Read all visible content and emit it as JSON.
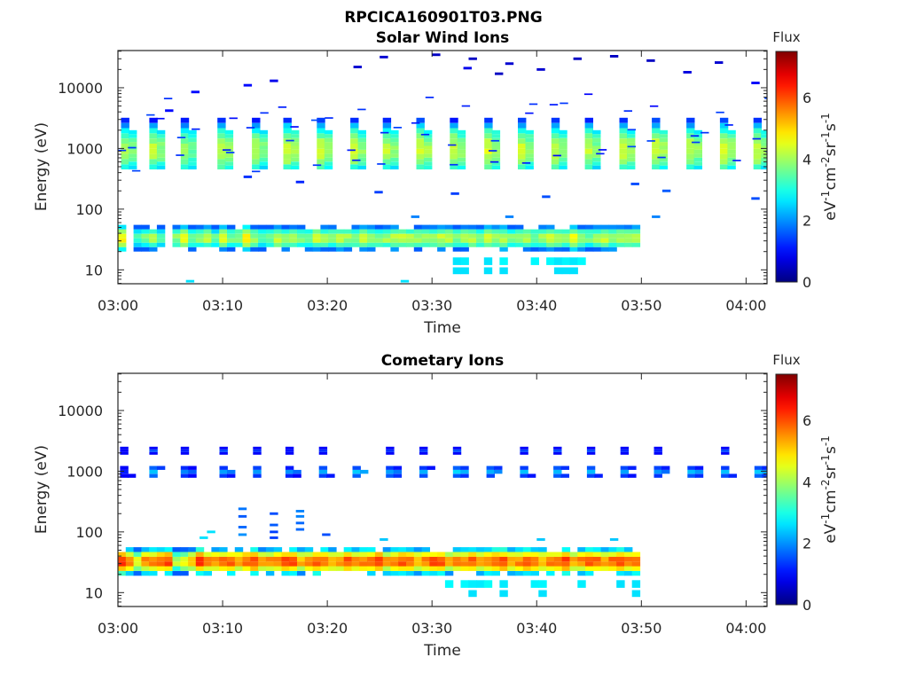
{
  "figure_title": "RPCICA160901T03.PNG",
  "chart_data": [
    {
      "type": "heatmap",
      "title": "Solar Wind Ions",
      "xlabel": "Time",
      "ylabel": "Energy (eV)",
      "xlim": [
        "03:00",
        "04:02"
      ],
      "x_ticks": [
        "03:00",
        "03:10",
        "03:20",
        "03:30",
        "03:40",
        "03:50",
        "04:00"
      ],
      "ylim": [
        5.9,
        41000
      ],
      "y_scale": "log",
      "y_ticks": [
        "10",
        "100",
        "1000",
        "10000"
      ],
      "colorbar": {
        "title": "Flux",
        "label": "eV-1cm-2sr-1s-1",
        "ticks": [
          "0",
          "2",
          "4",
          "6"
        ],
        "range": [
          0,
          7.5
        ],
        "colormap": "jet"
      },
      "time_step_min": 0.8,
      "burst_minutes": [
        0.3,
        3.0,
        6.0,
        9.5,
        12.8,
        15.8,
        19.0,
        22.2,
        25.3,
        28.5,
        31.7,
        35.0,
        38.2,
        41.4,
        44.6,
        47.9,
        51.0,
        54.3,
        57.5,
        60.7
      ],
      "burst_core_energy_ev": [
        700,
        1300
      ],
      "burst_peak_flux": [
        4.3,
        4.4,
        4.2,
        4.5,
        4.4,
        4.6,
        4.5,
        4.5,
        4.4,
        4.6,
        4.5,
        4.6,
        4.5,
        4.5,
        4.4,
        4.6,
        4.6,
        4.5,
        4.6,
        4.5
      ],
      "low_band_energy_ev": [
        20,
        55
      ],
      "low_band_peak_flux": [
        5.0,
        4.2,
        3.6,
        4.0,
        4.4,
        3.8,
        3.6,
        4.1,
        4.8,
        4.0,
        4.1,
        4.4,
        3.8,
        4.6,
        4.0,
        4.2,
        5.0,
        4.2,
        3.9,
        4.0,
        4.6,
        4.2,
        4.4,
        4.0,
        4.1,
        4.5,
        4.2,
        4.1,
        4.4,
        4.3,
        4.2,
        4.6,
        4.4,
        4.1,
        4.3,
        4.5,
        4.6,
        4.3,
        4.2,
        4.4,
        4.2,
        4.5,
        4.6,
        4.0,
        4.3,
        4.4,
        4.2,
        4.7,
        4.2,
        4.5,
        4.1,
        4.3,
        4.4,
        4.0,
        4.3,
        4.6,
        4.4,
        4.2,
        4.8,
        4.3,
        4.0,
        4.3,
        4.5,
        4.3,
        4.5,
        4.3,
        4.4
      ],
      "sparse_cells": [
        [
          6.5,
          6.5,
          2.6
        ],
        [
          27.0,
          6.5,
          2.6
        ],
        [
          4.5,
          4200,
          1.0
        ],
        [
          7.0,
          8500,
          1.0
        ],
        [
          12.0,
          11000,
          1.0
        ],
        [
          14.5,
          13000,
          0.8
        ],
        [
          22.5,
          22000,
          0.6
        ],
        [
          25.0,
          32000,
          0.6
        ],
        [
          30.0,
          35000,
          0.5
        ],
        [
          33.5,
          30000,
          0.5
        ],
        [
          37.0,
          25000,
          0.6
        ],
        [
          40.0,
          20000,
          0.6
        ],
        [
          43.5,
          30000,
          0.5
        ],
        [
          47.0,
          33000,
          0.5
        ],
        [
          50.5,
          28000,
          0.5
        ],
        [
          54.0,
          18000,
          0.7
        ],
        [
          57.0,
          26000,
          0.6
        ],
        [
          60.5,
          12000,
          0.9
        ],
        [
          33.0,
          21000,
          0.8
        ],
        [
          36.0,
          17000,
          0.5
        ],
        [
          12.0,
          340,
          1.3
        ],
        [
          17.0,
          280,
          1.2
        ],
        [
          24.5,
          190,
          1.4
        ],
        [
          31.8,
          180,
          1.4
        ],
        [
          40.5,
          160,
          1.5
        ],
        [
          49.0,
          260,
          1.5
        ],
        [
          52.0,
          200,
          1.6
        ],
        [
          60.5,
          150,
          1.5
        ],
        [
          28.0,
          75,
          1.9
        ],
        [
          37.0,
          75,
          1.9
        ],
        [
          51.0,
          75,
          1.9
        ]
      ]
    },
    {
      "type": "heatmap",
      "title": "Cometary Ions",
      "xlabel": "Time",
      "ylabel": "Energy (eV)",
      "xlim": [
        "03:00",
        "04:02"
      ],
      "x_ticks": [
        "03:00",
        "03:10",
        "03:20",
        "03:30",
        "03:40",
        "03:50",
        "04:00"
      ],
      "ylim": [
        5.9,
        41000
      ],
      "y_scale": "log",
      "y_ticks": [
        "10",
        "100",
        "1000",
        "10000"
      ],
      "colorbar": {
        "title": "Flux",
        "label": "eV-1cm-2sr-1s-1",
        "ticks": [
          "0",
          "2",
          "4",
          "6"
        ],
        "range": [
          0,
          7.5
        ],
        "colormap": "jet"
      },
      "time_step_min": 0.8,
      "burst_minutes": [
        0.2,
        3.0,
        6.0,
        9.7,
        12.9,
        16.0,
        19.2,
        22.4,
        25.6,
        28.8,
        32.0,
        35.2,
        38.4,
        41.6,
        44.8,
        48.0,
        51.2,
        54.4,
        57.6,
        60.8
      ],
      "burst_energy_ev": [
        1000,
        2200
      ],
      "burst_peak_flux": [
        1.2,
        2.6,
        2.2,
        2.4,
        2.3,
        2.2,
        2.4,
        2.5,
        2.4,
        2.3,
        2.6,
        2.5,
        2.4,
        2.5,
        2.5,
        2.4,
        2.3,
        2.4,
        2.4,
        2.5
      ],
      "low_band_energy_ev": [
        19,
        56
      ],
      "low_band_peak_flux": [
        6.6,
        6.0,
        5.0,
        5.8,
        5.9,
        6.2,
        6.4,
        4.5,
        5.0,
        5.5,
        6.5,
        5.8,
        5.8,
        6.0,
        6.2,
        5.8,
        6.2,
        6.4,
        5.6,
        5.8,
        6.0,
        6.3,
        6.4,
        5.6,
        5.8,
        6.2,
        6.1,
        5.6,
        5.9,
        6.3,
        5.8,
        6.0,
        6.2,
        6.4,
        5.7,
        5.9,
        6.2,
        6.1,
        5.6,
        6.0,
        6.3,
        6.2,
        5.6,
        5.9,
        6.0,
        6.3,
        5.8,
        6.0,
        6.3,
        6.4,
        5.8,
        5.9,
        6.3,
        6.1,
        5.6,
        6.0,
        6.2,
        6.4,
        5.7,
        5.9,
        6.2,
        6.1,
        5.8,
        6.1,
        6.2,
        6.0,
        6.1
      ],
      "sparse_cells": [
        [
          11.5,
          240,
          1.8
        ],
        [
          11.5,
          180,
          1.6
        ],
        [
          11.5,
          120,
          1.7
        ],
        [
          11.5,
          90,
          2.0
        ],
        [
          14.5,
          200,
          1.5
        ],
        [
          14.5,
          130,
          1.6
        ],
        [
          14.5,
          100,
          1.4
        ],
        [
          14.5,
          80,
          1.4
        ],
        [
          17.0,
          220,
          1.9
        ],
        [
          17.0,
          180,
          1.9
        ],
        [
          17.0,
          140,
          1.7
        ],
        [
          17.0,
          110,
          1.7
        ],
        [
          19.5,
          90,
          1.5
        ],
        [
          8.5,
          100,
          2.6
        ],
        [
          7.8,
          80,
          2.6
        ],
        [
          25.0,
          75,
          2.4
        ],
        [
          40.0,
          75,
          2.4
        ],
        [
          47.0,
          75,
          2.4
        ]
      ]
    }
  ]
}
